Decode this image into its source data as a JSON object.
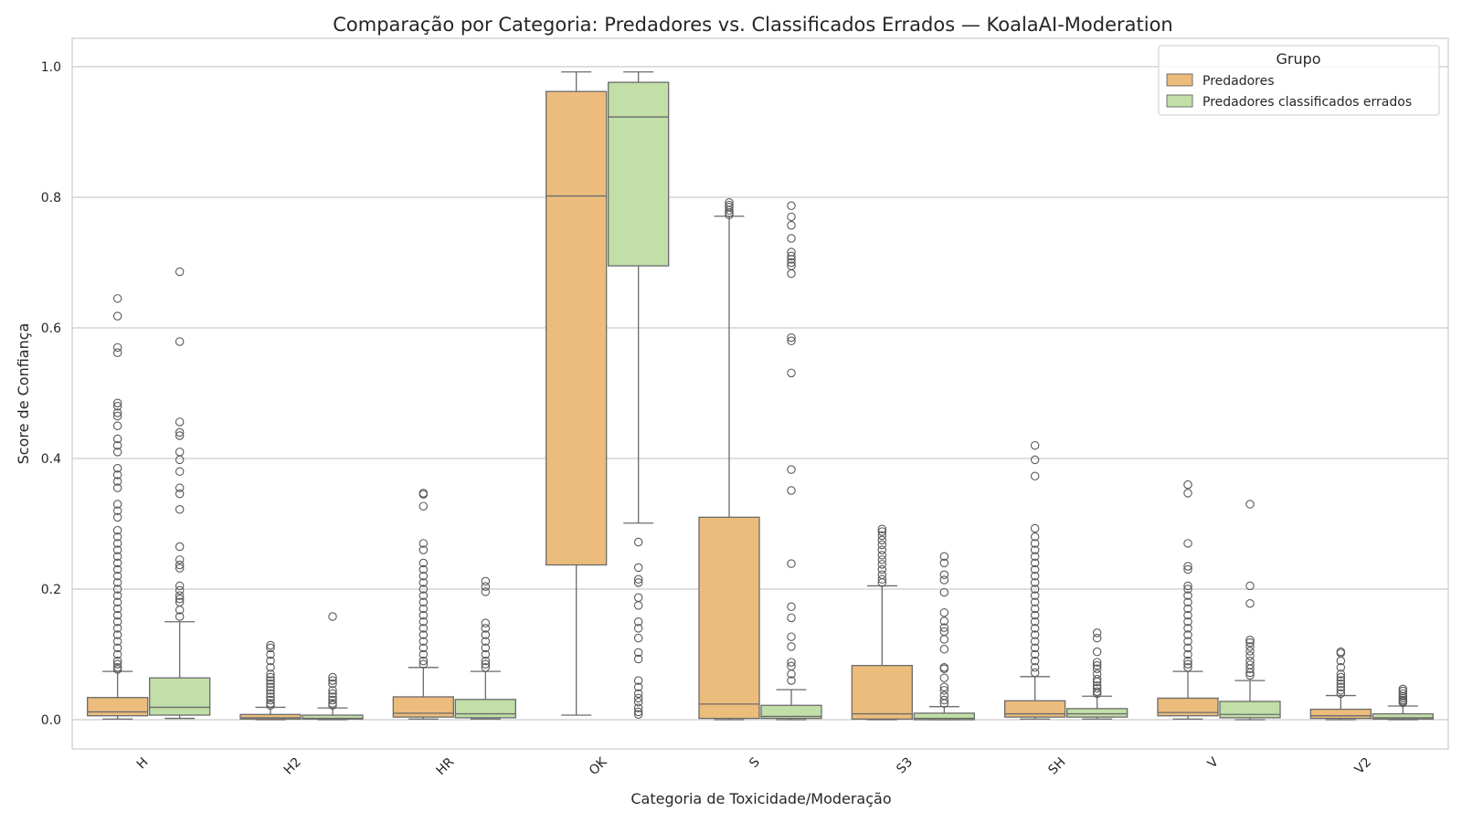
{
  "chart_data": {
    "type": "box",
    "title": "Comparação por Categoria: Predadores vs. Classificados Errados — KoalaAI-Moderation",
    "xlabel": "Categoria de Toxicidade/Moderação",
    "ylabel": "Score de Confiança",
    "ylim": [
      -0.05,
      1.04
    ],
    "yticks": [
      "0.0",
      "0.2",
      "0.4",
      "0.6",
      "0.8",
      "1.0"
    ],
    "grid": true,
    "legend": {
      "title": "Grupo",
      "placement": "top-right"
    },
    "categories": [
      "H",
      "H2",
      "HR",
      "OK",
      "S",
      "S3",
      "SH",
      "V",
      "V2"
    ],
    "series": [
      {
        "name": "Predadores",
        "color": "#ecbc7c",
        "boxes": [
          {
            "whisker_low": 0.001,
            "q1": 0.006,
            "median": 0.012,
            "q3": 0.034,
            "whisker_high": 0.074,
            "outliers": [
              0.645,
              0.618,
              0.57,
              0.562,
              0.485,
              0.48,
              0.47,
              0.465,
              0.45,
              0.43,
              0.42,
              0.41,
              0.385,
              0.375,
              0.365,
              0.355,
              0.33,
              0.32,
              0.31,
              0.29,
              0.28,
              0.27,
              0.26,
              0.25,
              0.24,
              0.23,
              0.22,
              0.21,
              0.2,
              0.19,
              0.18,
              0.17,
              0.16,
              0.15,
              0.14,
              0.13,
              0.12,
              0.11,
              0.1,
              0.09,
              0.085,
              0.08,
              0.077
            ]
          },
          {
            "whisker_low": 0.0,
            "q1": 0.001,
            "median": 0.003,
            "q3": 0.008,
            "whisker_high": 0.019,
            "outliers": [
              0.114,
              0.11,
              0.1,
              0.09,
              0.08,
              0.07,
              0.065,
              0.06,
              0.055,
              0.05,
              0.045,
              0.04,
              0.035,
              0.03,
              0.025,
              0.022
            ]
          },
          {
            "whisker_low": 0.001,
            "q1": 0.004,
            "median": 0.01,
            "q3": 0.035,
            "whisker_high": 0.08,
            "outliers": [
              0.347,
              0.345,
              0.327,
              0.27,
              0.26,
              0.24,
              0.23,
              0.22,
              0.21,
              0.2,
              0.19,
              0.18,
              0.17,
              0.16,
              0.15,
              0.14,
              0.13,
              0.12,
              0.11,
              0.1,
              0.09,
              0.085
            ]
          },
          {
            "whisker_low": 0.007,
            "q1": 0.237,
            "median": 0.802,
            "q3": 0.962,
            "whisker_high": 0.992,
            "outliers": []
          },
          {
            "whisker_low": 0.0,
            "q1": 0.002,
            "median": 0.024,
            "q3": 0.31,
            "whisker_high": 0.771,
            "outliers": [
              0.792,
              0.788,
              0.785,
              0.78,
              0.776,
              0.773
            ]
          },
          {
            "whisker_low": 0.0,
            "q1": 0.001,
            "median": 0.009,
            "q3": 0.083,
            "whisker_high": 0.205,
            "outliers": [
              0.292,
              0.288,
              0.282,
              0.275,
              0.268,
              0.26,
              0.252,
              0.245,
              0.238,
              0.23,
              0.222,
              0.215,
              0.21
            ]
          },
          {
            "whisker_low": 0.001,
            "q1": 0.004,
            "median": 0.009,
            "q3": 0.029,
            "whisker_high": 0.066,
            "outliers": [
              0.42,
              0.398,
              0.373,
              0.293,
              0.28,
              0.27,
              0.26,
              0.25,
              0.24,
              0.23,
              0.22,
              0.21,
              0.2,
              0.19,
              0.18,
              0.17,
              0.16,
              0.15,
              0.14,
              0.13,
              0.12,
              0.11,
              0.1,
              0.09,
              0.08,
              0.072
            ]
          },
          {
            "whisker_low": 0.001,
            "q1": 0.006,
            "median": 0.011,
            "q3": 0.033,
            "whisker_high": 0.074,
            "outliers": [
              0.36,
              0.347,
              0.27,
              0.235,
              0.23,
              0.205,
              0.2,
              0.19,
              0.18,
              0.17,
              0.16,
              0.15,
              0.14,
              0.13,
              0.12,
              0.11,
              0.1,
              0.09,
              0.085,
              0.08
            ]
          },
          {
            "whisker_low": 0.0,
            "q1": 0.002,
            "median": 0.006,
            "q3": 0.016,
            "whisker_high": 0.037,
            "outliers": [
              0.104,
              0.102,
              0.09,
              0.08,
              0.07,
              0.065,
              0.06,
              0.055,
              0.05,
              0.045,
              0.04
            ]
          }
        ]
      },
      {
        "name": "Predadores classificados errados",
        "color": "#c1dfa6",
        "boxes": [
          {
            "whisker_low": 0.002,
            "q1": 0.007,
            "median": 0.019,
            "q3": 0.064,
            "whisker_high": 0.15,
            "outliers": [
              0.686,
              0.579,
              0.456,
              0.44,
              0.435,
              0.41,
              0.398,
              0.38,
              0.355,
              0.346,
              0.322,
              0.265,
              0.245,
              0.237,
              0.232,
              0.205,
              0.198,
              0.19,
              0.185,
              0.18,
              0.168,
              0.158
            ]
          },
          {
            "whisker_low": 0.0,
            "q1": 0.001,
            "median": 0.002,
            "q3": 0.007,
            "whisker_high": 0.018,
            "outliers": [
              0.158,
              0.065,
              0.06,
              0.055,
              0.045,
              0.04,
              0.035,
              0.03,
              0.025,
              0.022
            ]
          },
          {
            "whisker_low": 0.001,
            "q1": 0.003,
            "median": 0.009,
            "q3": 0.031,
            "whisker_high": 0.074,
            "outliers": [
              0.212,
              0.204,
              0.196,
              0.148,
              0.14,
              0.13,
              0.12,
              0.11,
              0.1,
              0.09,
              0.085,
              0.08
            ]
          },
          {
            "whisker_low": 0.301,
            "q1": 0.695,
            "median": 0.923,
            "q3": 0.976,
            "whisker_high": 0.992,
            "outliers": [
              0.272,
              0.233,
              0.215,
              0.21,
              0.187,
              0.175,
              0.15,
              0.14,
              0.125,
              0.103,
              0.093,
              0.06,
              0.05,
              0.04,
              0.033,
              0.027,
              0.018,
              0.012,
              0.008
            ]
          },
          {
            "whisker_low": 0.0,
            "q1": 0.002,
            "median": 0.005,
            "q3": 0.022,
            "whisker_high": 0.046,
            "outliers": [
              0.787,
              0.77,
              0.757,
              0.737,
              0.716,
              0.71,
              0.705,
              0.7,
              0.695,
              0.683,
              0.585,
              0.58,
              0.531,
              0.383,
              0.351,
              0.239,
              0.173,
              0.156,
              0.127,
              0.112,
              0.088,
              0.082,
              0.07,
              0.06
            ]
          },
          {
            "whisker_low": 0.0,
            "q1": 0.0,
            "median": 0.002,
            "q3": 0.01,
            "whisker_high": 0.02,
            "outliers": [
              0.25,
              0.24,
              0.222,
              0.214,
              0.195,
              0.164,
              0.151,
              0.141,
              0.135,
              0.123,
              0.108,
              0.08,
              0.078,
              0.064,
              0.05,
              0.045,
              0.037,
              0.03,
              0.025
            ]
          },
          {
            "whisker_low": 0.001,
            "q1": 0.004,
            "median": 0.009,
            "q3": 0.017,
            "whisker_high": 0.036,
            "outliers": [
              0.133,
              0.125,
              0.104,
              0.088,
              0.083,
              0.078,
              0.07,
              0.062,
              0.058,
              0.052,
              0.048,
              0.043,
              0.04
            ]
          },
          {
            "whisker_low": 0.0,
            "q1": 0.003,
            "median": 0.008,
            "q3": 0.028,
            "whisker_high": 0.06,
            "outliers": [
              0.33,
              0.205,
              0.178,
              0.122,
              0.118,
              0.112,
              0.105,
              0.098,
              0.09,
              0.084,
              0.078,
              0.072,
              0.068
            ]
          },
          {
            "whisker_low": 0.0,
            "q1": 0.001,
            "median": 0.003,
            "q3": 0.009,
            "whisker_high": 0.021,
            "outliers": [
              0.047,
              0.044,
              0.04,
              0.036,
              0.033,
              0.03,
              0.028,
              0.026
            ]
          }
        ]
      }
    ]
  }
}
